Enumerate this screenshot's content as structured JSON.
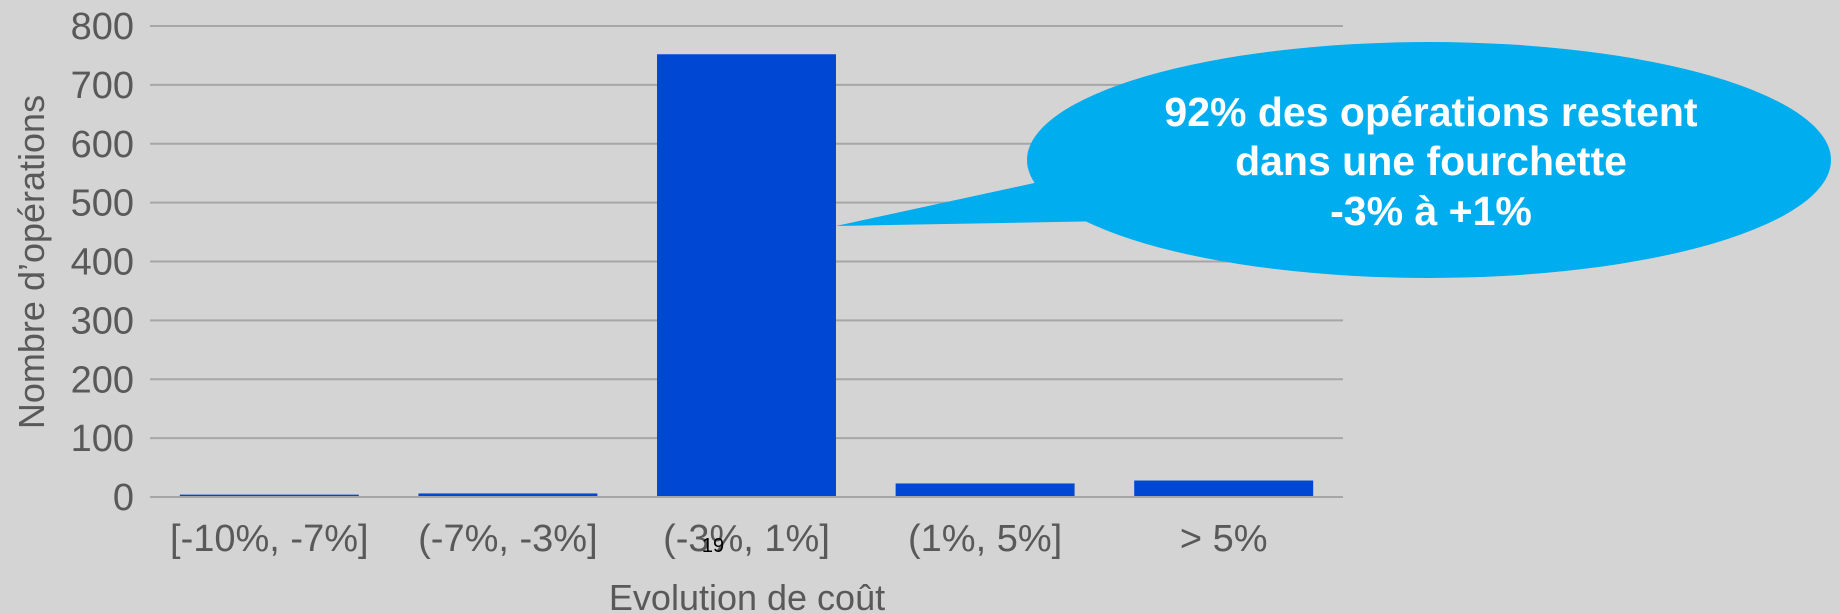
{
  "chart_data": {
    "type": "bar",
    "categories": [
      "[-10%, -7%]",
      "(-7%, -3%]",
      "(-3%, 1%]",
      "(1%, 5%]",
      "> 5%"
    ],
    "values": [
      4,
      6,
      752,
      23,
      28
    ],
    "xlabel": "Evolution de coût",
    "ylabel": "Nombre d’opérations",
    "ylim": [
      0,
      800
    ],
    "yticks": [
      0,
      100,
      200,
      300,
      400,
      500,
      600,
      700,
      800
    ],
    "grid": true,
    "legend": "none",
    "bar_color": "#0047d4",
    "grid_color": "#a6a6a6",
    "annotation": {
      "lines": [
        "92% des opérations restent",
        "dans une fourchette",
        "-3% à +1%"
      ],
      "target_category": "(-3%, 1%]",
      "color": "#00adef",
      "text_color": "#ffffff"
    }
  },
  "page_number": "19"
}
